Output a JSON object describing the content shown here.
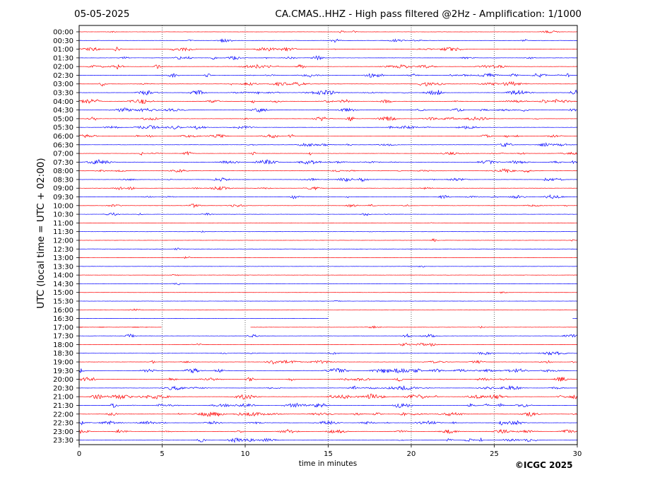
{
  "header": {
    "date": "05-05-2025",
    "title": "CA.CMAS..HHZ - High pass filtered @2Hz - Amplification: 1/1000"
  },
  "footer": {
    "copyright": "©ICGC 2025"
  },
  "chart_data": {
    "type": "line",
    "title": "CA.CMAS..HHZ - High pass filtered @2Hz - Amplification: 1/1000",
    "xlabel": "time in minutes",
    "ylabel": "UTC (local time = UTC + 02:00)",
    "xlim": [
      0,
      30
    ],
    "xticks": [
      0,
      5,
      10,
      15,
      20,
      25,
      30
    ],
    "grid": "vertical dotted lines at 5-minute intervals",
    "colors": {
      "odd_rows": "#ff0000",
      "even_rows": "#0000ff"
    },
    "series": [
      {
        "name": "00:00",
        "color": "#ff0000",
        "activity": 0.15
      },
      {
        "name": "00:30",
        "color": "#0000ff",
        "activity": 0.35
      },
      {
        "name": "01:00",
        "color": "#ff0000",
        "activity": 0.55
      },
      {
        "name": "01:30",
        "color": "#0000ff",
        "activity": 0.5
      },
      {
        "name": "02:00",
        "color": "#ff0000",
        "activity": 0.6
      },
      {
        "name": "02:30",
        "color": "#0000ff",
        "activity": 0.65
      },
      {
        "name": "03:00",
        "color": "#ff0000",
        "activity": 0.55
      },
      {
        "name": "03:30",
        "color": "#0000ff",
        "activity": 0.65
      },
      {
        "name": "04:00",
        "color": "#ff0000",
        "activity": 0.6
      },
      {
        "name": "04:30",
        "color": "#0000ff",
        "activity": 0.55
      },
      {
        "name": "05:00",
        "color": "#ff0000",
        "activity": 0.45
      },
      {
        "name": "05:30",
        "color": "#0000ff",
        "activity": 0.45
      },
      {
        "name": "06:00",
        "color": "#ff0000",
        "activity": 0.5
      },
      {
        "name": "06:30",
        "color": "#0000ff",
        "activity": 0.35
      },
      {
        "name": "07:00",
        "color": "#ff0000",
        "activity": 0.5
      },
      {
        "name": "07:30",
        "color": "#0000ff",
        "activity": 0.6
      },
      {
        "name": "08:00",
        "color": "#ff0000",
        "activity": 0.45
      },
      {
        "name": "08:30",
        "color": "#0000ff",
        "activity": 0.45
      },
      {
        "name": "09:00",
        "color": "#ff0000",
        "activity": 0.4
      },
      {
        "name": "09:30",
        "color": "#0000ff",
        "activity": 0.4
      },
      {
        "name": "10:00",
        "color": "#ff0000",
        "activity": 0.3
      },
      {
        "name": "10:30",
        "color": "#0000ff",
        "activity": 0.2
      },
      {
        "name": "11:00",
        "color": "#ff0000",
        "activity": 0.05
      },
      {
        "name": "11:30",
        "color": "#0000ff",
        "activity": 0.08
      },
      {
        "name": "12:00",
        "color": "#ff0000",
        "activity": 0.06
      },
      {
        "name": "12:30",
        "color": "#0000ff",
        "activity": 0.03
      },
      {
        "name": "13:00",
        "color": "#ff0000",
        "activity": 0.05
      },
      {
        "name": "13:30",
        "color": "#0000ff",
        "activity": 0.04
      },
      {
        "name": "14:00",
        "color": "#ff0000",
        "activity": 0.03
      },
      {
        "name": "14:30",
        "color": "#0000ff",
        "activity": 0.03
      },
      {
        "name": "15:00",
        "color": "#ff0000",
        "activity": 0.04
      },
      {
        "name": "15:30",
        "color": "#0000ff",
        "activity": 0.02
      },
      {
        "name": "16:00",
        "color": "#ff0000",
        "activity": 0.05
      },
      {
        "name": "16:30",
        "color": "#0000ff",
        "activity": 0.0,
        "gap": [
          15,
          29.7
        ]
      },
      {
        "name": "17:00",
        "color": "#ff0000",
        "activity": 0.08,
        "gap": [
          5,
          10.3
        ]
      },
      {
        "name": "17:30",
        "color": "#0000ff",
        "activity": 0.25
      },
      {
        "name": "18:00",
        "color": "#ff0000",
        "activity": 0.15
      },
      {
        "name": "18:30",
        "color": "#0000ff",
        "activity": 0.25
      },
      {
        "name": "19:00",
        "color": "#ff0000",
        "activity": 0.5
      },
      {
        "name": "19:30",
        "color": "#0000ff",
        "activity": 0.65
      },
      {
        "name": "20:00",
        "color": "#ff0000",
        "activity": 0.6
      },
      {
        "name": "20:30",
        "color": "#0000ff",
        "activity": 0.6
      },
      {
        "name": "21:00",
        "color": "#ff0000",
        "activity": 0.75
      },
      {
        "name": "21:30",
        "color": "#0000ff",
        "activity": 0.75
      },
      {
        "name": "22:00",
        "color": "#ff0000",
        "activity": 0.65
      },
      {
        "name": "22:30",
        "color": "#0000ff",
        "activity": 0.6
      },
      {
        "name": "23:00",
        "color": "#ff0000",
        "activity": 0.5
      },
      {
        "name": "23:30",
        "color": "#0000ff",
        "activity": 0.45
      }
    ]
  }
}
